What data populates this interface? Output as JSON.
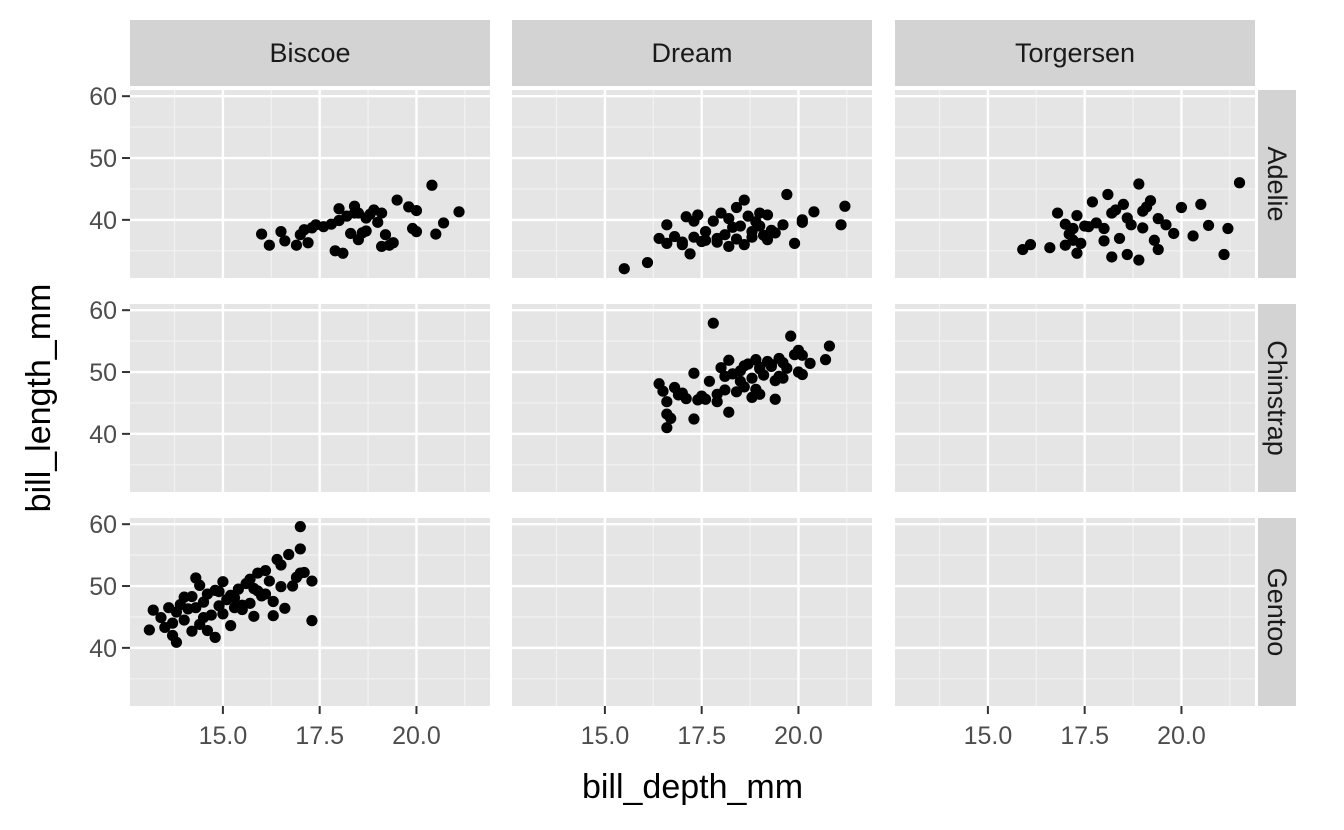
{
  "chart_data": {
    "type": "scatter",
    "facet": {
      "columns": [
        "Biscoe",
        "Dream",
        "Torgersen"
      ],
      "rows": [
        "Adelie",
        "Chinstrap",
        "Gentoo"
      ]
    },
    "xlabel": "bill_depth_mm",
    "ylabel": "bill_length_mm",
    "xlim": [
      12.6,
      21.9
    ],
    "ylim": [
      30.6,
      61.0
    ],
    "x_ticks": [
      15.0,
      17.5,
      20.0
    ],
    "x_tick_labels": [
      "15.0",
      "17.5",
      "20.0"
    ],
    "y_ticks": [
      40,
      50,
      60
    ],
    "y_tick_labels": [
      "40",
      "50",
      "60"
    ],
    "grid": true,
    "panel_background": "#e5e5e5",
    "strip_background": "#d3d3d3",
    "point_color": "#000000",
    "panels": [
      {
        "col": "Biscoe",
        "row": "Adelie",
        "points": [
          [
            16.0,
            37.7
          ],
          [
            16.2,
            35.9
          ],
          [
            16.5,
            38.1
          ],
          [
            16.6,
            36.6
          ],
          [
            16.9,
            35.9
          ],
          [
            17.0,
            37.6
          ],
          [
            17.1,
            38.4
          ],
          [
            17.2,
            36.3
          ],
          [
            17.3,
            38.7
          ],
          [
            17.6,
            38.9
          ],
          [
            17.8,
            39.3
          ],
          [
            18.0,
            39.9
          ],
          [
            18.2,
            40.6
          ],
          [
            18.5,
            41.1
          ],
          [
            18.7,
            40.3
          ],
          [
            18.9,
            41.6
          ],
          [
            19.1,
            41.1
          ],
          [
            17.9,
            35.0
          ],
          [
            18.1,
            34.6
          ],
          [
            18.3,
            37.8
          ],
          [
            18.4,
            42.2
          ],
          [
            18.7,
            38.2
          ],
          [
            19.0,
            39.6
          ],
          [
            19.2,
            37.6
          ],
          [
            19.3,
            35.9
          ],
          [
            19.5,
            43.2
          ],
          [
            19.8,
            42.1
          ],
          [
            20.0,
            41.5
          ],
          [
            20.4,
            45.6
          ],
          [
            20.7,
            39.5
          ],
          [
            21.1,
            41.3
          ],
          [
            18.0,
            41.8
          ],
          [
            18.6,
            37.9
          ],
          [
            19.4,
            36.3
          ],
          [
            20.0,
            38.1
          ],
          [
            20.5,
            37.7
          ],
          [
            18.4,
            41.1
          ],
          [
            18.8,
            40.9
          ],
          [
            19.1,
            35.7
          ],
          [
            17.4,
            39.2
          ],
          [
            19.9,
            38.6
          ],
          [
            18.5,
            36.8
          ]
        ]
      },
      {
        "col": "Dream",
        "row": "Adelie",
        "points": [
          [
            15.5,
            32.1
          ],
          [
            16.1,
            33.1
          ],
          [
            16.4,
            37.0
          ],
          [
            16.6,
            39.2
          ],
          [
            16.8,
            37.3
          ],
          [
            17.0,
            36.0
          ],
          [
            17.1,
            40.5
          ],
          [
            17.2,
            34.5
          ],
          [
            17.3,
            37.2
          ],
          [
            17.4,
            40.8
          ],
          [
            17.5,
            36.5
          ],
          [
            17.6,
            38.1
          ],
          [
            17.8,
            39.8
          ],
          [
            17.9,
            36.4
          ],
          [
            18.0,
            41.1
          ],
          [
            18.1,
            37.6
          ],
          [
            18.2,
            40.2
          ],
          [
            18.3,
            38.8
          ],
          [
            18.4,
            36.9
          ],
          [
            18.5,
            39.0
          ],
          [
            18.6,
            43.2
          ],
          [
            18.7,
            40.6
          ],
          [
            18.8,
            38.1
          ],
          [
            18.9,
            39.7
          ],
          [
            19.0,
            41.1
          ],
          [
            19.1,
            37.5
          ],
          [
            19.2,
            40.8
          ],
          [
            19.3,
            38.3
          ],
          [
            19.4,
            37.9
          ],
          [
            19.6,
            39.2
          ],
          [
            19.7,
            44.1
          ],
          [
            19.9,
            36.2
          ],
          [
            20.1,
            40.0
          ],
          [
            20.4,
            41.3
          ],
          [
            21.2,
            42.2
          ],
          [
            21.1,
            39.2
          ],
          [
            18.6,
            36.0
          ],
          [
            17.9,
            37.0
          ],
          [
            18.2,
            35.7
          ],
          [
            19.0,
            39.0
          ],
          [
            17.6,
            36.7
          ],
          [
            18.8,
            37.2
          ],
          [
            16.6,
            36.2
          ],
          [
            17.0,
            36.4
          ],
          [
            18.4,
            42.0
          ],
          [
            19.2,
            36.8
          ],
          [
            20.1,
            39.6
          ],
          [
            17.3,
            39.8
          ]
        ]
      },
      {
        "col": "Torgersen",
        "row": "Adelie",
        "points": [
          [
            15.9,
            35.2
          ],
          [
            16.1,
            36.0
          ],
          [
            16.6,
            35.5
          ],
          [
            16.8,
            41.1
          ],
          [
            17.0,
            39.3
          ],
          [
            17.1,
            37.7
          ],
          [
            17.2,
            38.6
          ],
          [
            17.3,
            34.6
          ],
          [
            17.4,
            36.2
          ],
          [
            17.6,
            38.9
          ],
          [
            17.7,
            42.9
          ],
          [
            17.8,
            39.5
          ],
          [
            18.0,
            38.6
          ],
          [
            18.1,
            44.1
          ],
          [
            18.2,
            34.0
          ],
          [
            18.3,
            41.6
          ],
          [
            18.4,
            37.0
          ],
          [
            18.5,
            42.5
          ],
          [
            18.6,
            40.3
          ],
          [
            18.7,
            39.2
          ],
          [
            18.9,
            45.8
          ],
          [
            19.0,
            38.7
          ],
          [
            19.1,
            42.1
          ],
          [
            19.2,
            43.1
          ],
          [
            19.3,
            36.7
          ],
          [
            19.4,
            35.2
          ],
          [
            19.6,
            39.2
          ],
          [
            19.8,
            37.8
          ],
          [
            20.0,
            42.0
          ],
          [
            20.3,
            37.4
          ],
          [
            20.5,
            42.5
          ],
          [
            20.7,
            39.1
          ],
          [
            21.1,
            34.4
          ],
          [
            21.2,
            38.6
          ],
          [
            21.5,
            46.0
          ],
          [
            17.3,
            40.7
          ],
          [
            18.0,
            36.6
          ],
          [
            18.9,
            33.5
          ],
          [
            19.4,
            40.2
          ],
          [
            17.0,
            35.9
          ],
          [
            18.6,
            34.4
          ],
          [
            17.5,
            39.0
          ],
          [
            19.0,
            41.4
          ],
          [
            18.2,
            41.1
          ],
          [
            17.2,
            36.7
          ]
        ]
      },
      {
        "col": "Dream",
        "row": "Chinstrap",
        "points": [
          [
            16.4,
            48.1
          ],
          [
            16.5,
            46.9
          ],
          [
            16.6,
            45.2
          ],
          [
            16.6,
            43.2
          ],
          [
            16.6,
            41.0
          ],
          [
            16.7,
            42.5
          ],
          [
            16.8,
            47.5
          ],
          [
            17.0,
            46.6
          ],
          [
            17.1,
            45.7
          ],
          [
            17.3,
            49.8
          ],
          [
            17.3,
            42.4
          ],
          [
            17.4,
            45.5
          ],
          [
            17.5,
            46.1
          ],
          [
            17.7,
            48.5
          ],
          [
            17.8,
            57.9
          ],
          [
            17.9,
            45.2
          ],
          [
            18.0,
            50.7
          ],
          [
            18.1,
            47.1
          ],
          [
            18.2,
            51.9
          ],
          [
            18.2,
            43.5
          ],
          [
            18.3,
            49.7
          ],
          [
            18.4,
            46.8
          ],
          [
            18.5,
            50.2
          ],
          [
            18.6,
            47.6
          ],
          [
            18.7,
            51.3
          ],
          [
            18.8,
            49.0
          ],
          [
            18.8,
            45.9
          ],
          [
            18.9,
            52.0
          ],
          [
            19.0,
            50.5
          ],
          [
            19.1,
            49.5
          ],
          [
            19.2,
            51.7
          ],
          [
            19.3,
            50.9
          ],
          [
            19.4,
            45.6
          ],
          [
            19.5,
            49.3
          ],
          [
            19.6,
            51.5
          ],
          [
            19.8,
            55.8
          ],
          [
            19.9,
            52.8
          ],
          [
            20.0,
            53.5
          ],
          [
            20.1,
            49.6
          ],
          [
            20.3,
            51.4
          ],
          [
            20.7,
            52.0
          ],
          [
            20.8,
            54.2
          ],
          [
            18.5,
            48.5
          ],
          [
            19.0,
            46.4
          ],
          [
            19.7,
            50.6
          ],
          [
            20.0,
            50.0
          ],
          [
            17.9,
            46.4
          ],
          [
            18.6,
            51.0
          ],
          [
            19.4,
            48.6
          ],
          [
            18.1,
            49.3
          ],
          [
            19.0,
            50.8
          ],
          [
            19.6,
            49.0
          ],
          [
            20.1,
            52.7
          ],
          [
            17.6,
            45.6
          ],
          [
            18.9,
            47.2
          ],
          [
            19.5,
            52.2
          ],
          [
            16.9,
            46.3
          ],
          [
            19.3,
            51.2
          ]
        ]
      },
      {
        "col": "Biscoe",
        "row": "Gentoo",
        "points": [
          [
            13.1,
            42.9
          ],
          [
            13.2,
            46.1
          ],
          [
            13.4,
            44.9
          ],
          [
            13.5,
            43.3
          ],
          [
            13.6,
            46.5
          ],
          [
            13.7,
            42.0
          ],
          [
            13.7,
            44.0
          ],
          [
            13.8,
            45.8
          ],
          [
            13.9,
            47.0
          ],
          [
            14.0,
            44.5
          ],
          [
            14.1,
            46.3
          ],
          [
            14.2,
            48.3
          ],
          [
            14.2,
            42.7
          ],
          [
            14.3,
            46.5
          ],
          [
            14.4,
            50.1
          ],
          [
            14.5,
            47.4
          ],
          [
            14.5,
            44.9
          ],
          [
            14.6,
            48.7
          ],
          [
            14.7,
            45.3
          ],
          [
            14.8,
            49.3
          ],
          [
            14.9,
            46.8
          ],
          [
            15.0,
            50.7
          ],
          [
            15.0,
            45.5
          ],
          [
            15.1,
            47.8
          ],
          [
            15.2,
            43.6
          ],
          [
            15.3,
            48.1
          ],
          [
            15.4,
            49.5
          ],
          [
            15.5,
            46.2
          ],
          [
            15.6,
            50.4
          ],
          [
            15.7,
            47.2
          ],
          [
            15.8,
            45.1
          ],
          [
            15.9,
            49.2
          ],
          [
            16.0,
            48.4
          ],
          [
            16.1,
            52.5
          ],
          [
            16.2,
            50.8
          ],
          [
            16.3,
            47.5
          ],
          [
            16.4,
            54.3
          ],
          [
            16.5,
            49.9
          ],
          [
            16.6,
            46.4
          ],
          [
            16.7,
            55.1
          ],
          [
            16.8,
            50.0
          ],
          [
            17.0,
            52.1
          ],
          [
            17.0,
            56.0
          ],
          [
            17.0,
            59.6
          ],
          [
            17.1,
            52.2
          ],
          [
            17.3,
            50.8
          ],
          [
            17.3,
            44.4
          ],
          [
            14.3,
            51.3
          ],
          [
            14.6,
            42.8
          ],
          [
            14.8,
            41.7
          ],
          [
            15.2,
            48.5
          ],
          [
            15.5,
            46.9
          ],
          [
            15.7,
            51.1
          ],
          [
            16.3,
            45.2
          ],
          [
            16.9,
            51.4
          ],
          [
            16.1,
            48.7
          ],
          [
            15.8,
            49.6
          ],
          [
            16.5,
            53.4
          ],
          [
            13.8,
            40.9
          ],
          [
            14.0,
            48.2
          ],
          [
            14.4,
            43.8
          ],
          [
            14.9,
            49.1
          ],
          [
            15.3,
            46.5
          ],
          [
            15.9,
            52.1
          ]
        ]
      }
    ]
  }
}
